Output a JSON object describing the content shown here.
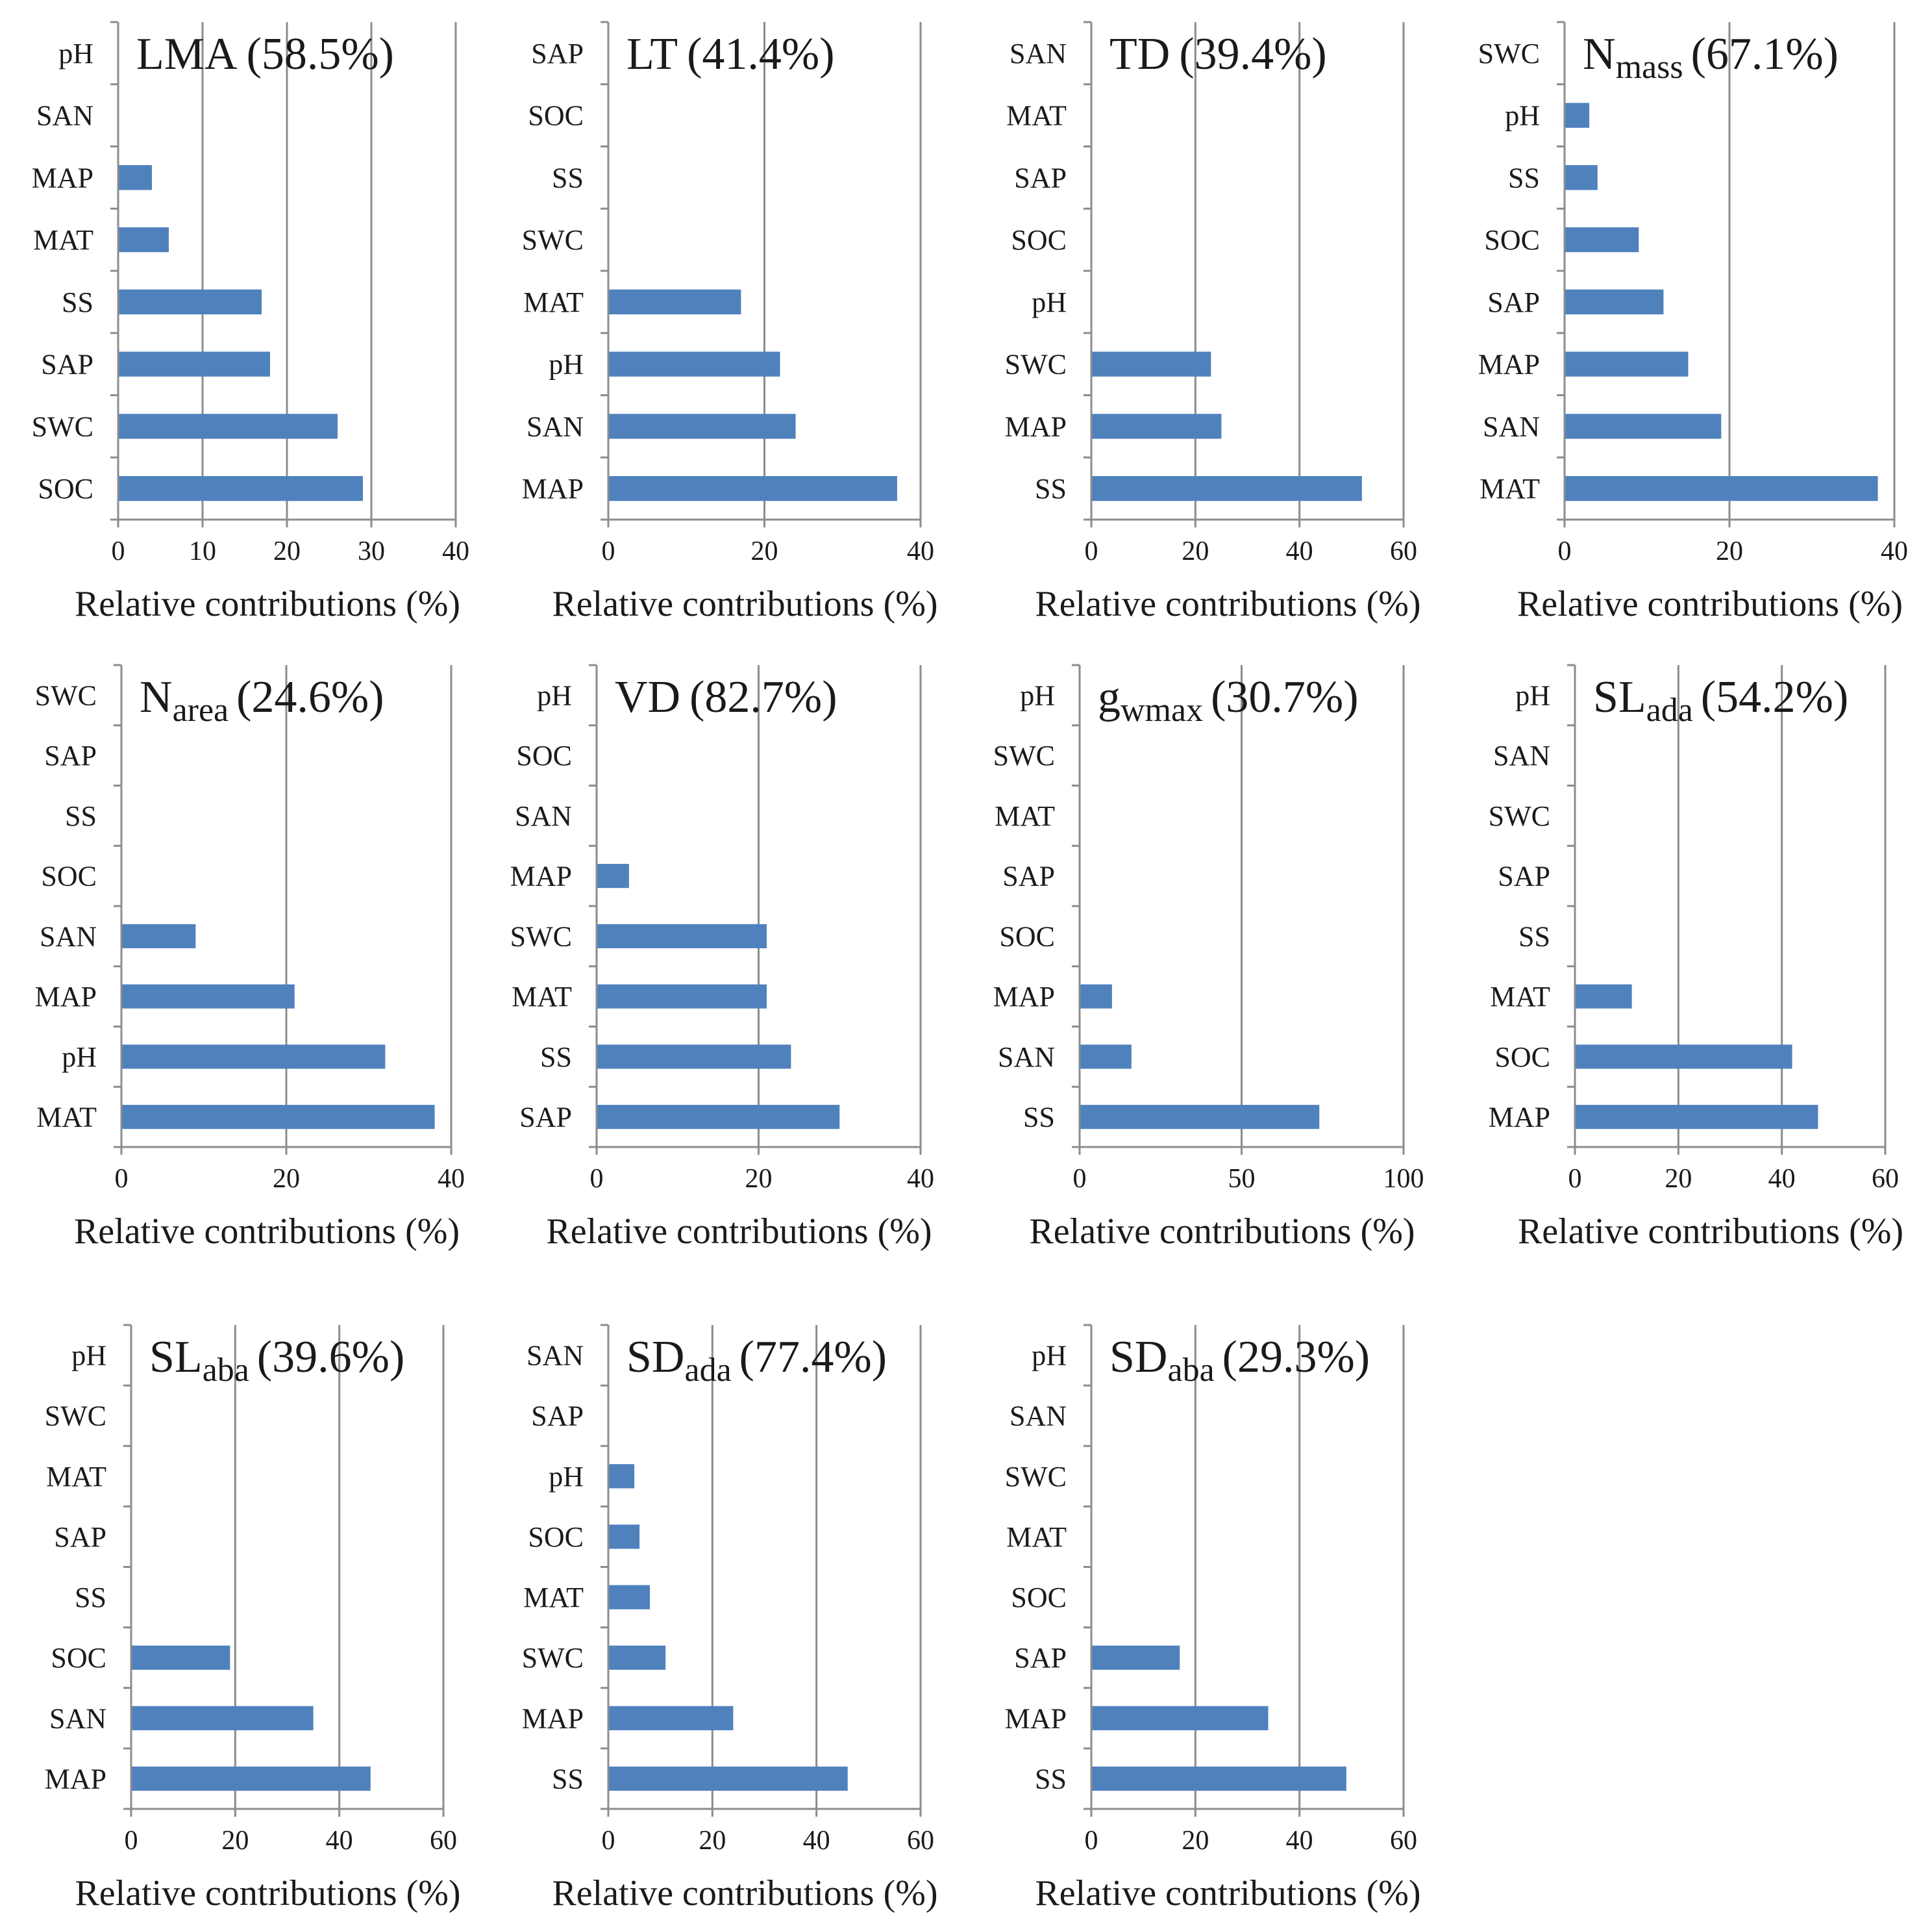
{
  "figure": {
    "colors": {
      "bar": "#4f81bd",
      "grid": "#8c8c8c",
      "axis": "#8c8c8c",
      "text": "#1a1a1a"
    }
  },
  "chart_data": [
    {
      "type": "bar",
      "orientation": "horizontal",
      "title": "LMA (58.5%)",
      "title_main": "LMA",
      "title_sub": "",
      "title_pct": "(58.5%)",
      "categories": [
        "pH",
        "SAN",
        "MAP",
        "MAT",
        "SS",
        "SAP",
        "SWC",
        "SOC"
      ],
      "values": [
        0,
        0,
        4,
        6,
        17,
        18,
        26,
        29
      ],
      "xlim": [
        0,
        40
      ],
      "xticks": [
        0,
        10,
        20,
        30,
        40
      ],
      "xlabel": "Relative contributions (%)",
      "ylabel": ""
    },
    {
      "type": "bar",
      "orientation": "horizontal",
      "title": "LT (41.4%)",
      "title_main": "LT",
      "title_sub": "",
      "title_pct": "(41.4%)",
      "categories": [
        "SAP",
        "SOC",
        "SS",
        "SWC",
        "MAT",
        "pH",
        "SAN",
        "MAP"
      ],
      "values": [
        0,
        0,
        0,
        0,
        17,
        22,
        24,
        37
      ],
      "xlim": [
        0,
        40
      ],
      "xticks": [
        0,
        20,
        40
      ],
      "xlabel": "Relative contributions (%)",
      "ylabel": ""
    },
    {
      "type": "bar",
      "orientation": "horizontal",
      "title": "TD (39.4%)",
      "title_main": "TD",
      "title_sub": "",
      "title_pct": "(39.4%)",
      "categories": [
        "SAN",
        "MAT",
        "SAP",
        "SOC",
        "pH",
        "SWC",
        "MAP",
        "SS"
      ],
      "values": [
        0,
        0,
        0,
        0,
        0,
        23,
        25,
        52
      ],
      "xlim": [
        0,
        60
      ],
      "xticks": [
        0,
        20,
        40,
        60
      ],
      "xlabel": "Relative contributions (%)",
      "ylabel": ""
    },
    {
      "type": "bar",
      "orientation": "horizontal",
      "title": "Nmass (67.1%)",
      "title_main": "N",
      "title_sub": "mass",
      "title_pct": "(67.1%)",
      "categories": [
        "SWC",
        "pH",
        "SS",
        "SOC",
        "SAP",
        "MAP",
        "SAN",
        "MAT"
      ],
      "values": [
        0,
        3,
        4,
        9,
        12,
        15,
        19,
        38
      ],
      "xlim": [
        0,
        40
      ],
      "xticks": [
        0,
        20,
        40
      ],
      "xlabel": "Relative contributions (%)",
      "ylabel": ""
    },
    {
      "type": "bar",
      "orientation": "horizontal",
      "title": "Narea (24.6%)",
      "title_main": "N",
      "title_sub": "area",
      "title_pct": "(24.6%)",
      "categories": [
        "SWC",
        "SAP",
        "SS",
        "SOC",
        "SAN",
        "MAP",
        "pH",
        "MAT"
      ],
      "values": [
        0,
        0,
        0,
        0,
        9,
        21,
        32,
        38
      ],
      "xlim": [
        0,
        40
      ],
      "xticks": [
        0,
        20,
        40
      ],
      "xlabel": "Relative contributions (%)",
      "ylabel": ""
    },
    {
      "type": "bar",
      "orientation": "horizontal",
      "title": "VD (82.7%)",
      "title_main": "VD",
      "title_sub": "",
      "title_pct": "(82.7%)",
      "categories": [
        "pH",
        "SOC",
        "SAN",
        "MAP",
        "SWC",
        "MAT",
        "SS",
        "SAP"
      ],
      "values": [
        0,
        0,
        0,
        4,
        21,
        21,
        24,
        30
      ],
      "xlim": [
        0,
        40
      ],
      "xticks": [
        0,
        20,
        40
      ],
      "xlabel": "Relative contributions (%)",
      "ylabel": ""
    },
    {
      "type": "bar",
      "orientation": "horizontal",
      "title": "gwmax (30.7%)",
      "title_main": "g",
      "title_sub": "wmax",
      "title_pct": "(30.7%)",
      "categories": [
        "pH",
        "SWC",
        "MAT",
        "SAP",
        "SOC",
        "MAP",
        "SAN",
        "SS"
      ],
      "values": [
        0,
        0,
        0,
        0,
        0,
        10,
        16,
        74
      ],
      "xlim": [
        0,
        100
      ],
      "xticks": [
        0,
        50,
        100
      ],
      "xlabel": "Relative contributions (%)",
      "ylabel": ""
    },
    {
      "type": "bar",
      "orientation": "horizontal",
      "title": "SLada (54.2%)",
      "title_main": "SL",
      "title_sub": "ada",
      "title_pct": "(54.2%)",
      "categories": [
        "pH",
        "SAN",
        "SWC",
        "SAP",
        "SS",
        "MAT",
        "SOC",
        "MAP"
      ],
      "values": [
        0,
        0,
        0,
        0,
        0,
        11,
        42,
        47
      ],
      "xlim": [
        0,
        60
      ],
      "xticks": [
        0,
        20,
        40,
        60
      ],
      "xlabel": "Relative contributions (%)",
      "ylabel": ""
    },
    {
      "type": "bar",
      "orientation": "horizontal",
      "title": "SLaba (39.6%)",
      "title_main": "SL",
      "title_sub": "aba",
      "title_pct": "(39.6%)",
      "categories": [
        "pH",
        "SWC",
        "MAT",
        "SAP",
        "SS",
        "SOC",
        "SAN",
        "MAP"
      ],
      "values": [
        0,
        0,
        0,
        0,
        0,
        19,
        35,
        46
      ],
      "xlim": [
        0,
        60
      ],
      "xticks": [
        0,
        20,
        40,
        60
      ],
      "xlabel": "Relative contributions (%)",
      "ylabel": ""
    },
    {
      "type": "bar",
      "orientation": "horizontal",
      "title": "SDada (77.4%)",
      "title_main": "SD",
      "title_sub": "ada",
      "title_pct": "(77.4%)",
      "categories": [
        "SAN",
        "SAP",
        "pH",
        "SOC",
        "MAT",
        "SWC",
        "MAP",
        "SS"
      ],
      "values": [
        0,
        0,
        5,
        6,
        8,
        11,
        24,
        46
      ],
      "xlim": [
        0,
        60
      ],
      "xticks": [
        0,
        20,
        40,
        60
      ],
      "xlabel": "Relative contributions (%)",
      "ylabel": ""
    },
    {
      "type": "bar",
      "orientation": "horizontal",
      "title": "SDaba (29.3%)",
      "title_main": "SD",
      "title_sub": "aba",
      "title_pct": "(29.3%)",
      "categories": [
        "pH",
        "SAN",
        "SWC",
        "MAT",
        "SOC",
        "SAP",
        "MAP",
        "SS"
      ],
      "values": [
        0,
        0,
        0,
        0,
        0,
        17,
        34,
        49
      ],
      "xlim": [
        0,
        60
      ],
      "xticks": [
        0,
        20,
        40,
        60
      ],
      "xlabel": "Relative contributions (%)",
      "ylabel": ""
    }
  ]
}
